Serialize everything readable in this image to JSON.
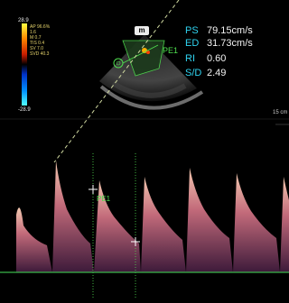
{
  "color_scale": {
    "top_value": "28.9",
    "bottom_value": "-28.9",
    "params": [
      "AP 96.6%",
      "1.6",
      "M 0.7",
      "TIS 0.4",
      "SV 7.0",
      "SVD 40.3"
    ]
  },
  "mode_badge": "m",
  "gate_label": "PE1",
  "trace_label": "PE1",
  "depth_label": "15 cm",
  "measurements": [
    {
      "key": "PS",
      "value": "79.15cm/s"
    },
    {
      "key": "ED",
      "value": "31.73cm/s"
    },
    {
      "key": "RI",
      "value": "0.60"
    },
    {
      "key": "S/D",
      "value": "2.49"
    }
  ],
  "colors": {
    "accent_cyan": "#2fd3f0",
    "marker_green": "#4fe04f",
    "doppler_spectrum": "#d9a08a",
    "baseline": "#39b54a"
  }
}
